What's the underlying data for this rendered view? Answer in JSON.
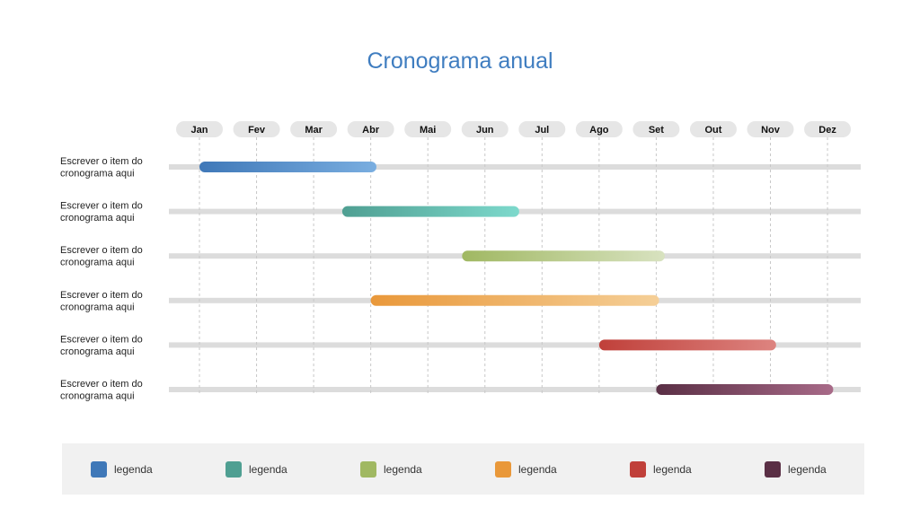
{
  "chart_data": {
    "type": "gantt",
    "title": "Cronograma anual",
    "months": [
      "Jan",
      "Fev",
      "Mar",
      "Abr",
      "Mai",
      "Jun",
      "Jul",
      "Ago",
      "Set",
      "Out",
      "Nov",
      "Dez"
    ],
    "tasks": [
      {
        "label": [
          "Escrever o item do",
          "cronograma aqui"
        ],
        "start": 1.0,
        "end": 4.1,
        "color_start": "#3f78b8",
        "color_end": "#7aaee0"
      },
      {
        "label": [
          "Escrever o item do",
          "cronograma aqui"
        ],
        "start": 3.5,
        "end": 6.6,
        "color_start": "#4f9f92",
        "color_end": "#7dd9cc"
      },
      {
        "label": [
          "Escrever o item do",
          "cronograma aqui"
        ],
        "start": 5.6,
        "end": 9.15,
        "color_start": "#a0b862",
        "color_end": "#d8e2c0"
      },
      {
        "label": [
          "Escrever o item do",
          "cronograma aqui"
        ],
        "start": 4.0,
        "end": 9.05,
        "color_start": "#e9983a",
        "color_end": "#f5cf97"
      },
      {
        "label": [
          "Escrever o item do",
          "cronograma aqui"
        ],
        "start": 8.0,
        "end": 11.1,
        "color_start": "#c0403a",
        "color_end": "#dd8480"
      },
      {
        "label": [
          "Escrever o item do",
          "cronograma aqui"
        ],
        "start": 9.0,
        "end": 12.1,
        "color_start": "#5a2f45",
        "color_end": "#a86a88"
      }
    ],
    "legend": [
      {
        "label": "legenda",
        "color": "#3f78b8"
      },
      {
        "label": "legenda",
        "color": "#4f9f92"
      },
      {
        "label": "legenda",
        "color": "#a0b862"
      },
      {
        "label": "legenda",
        "color": "#e9983a"
      },
      {
        "label": "legenda",
        "color": "#c0403a"
      },
      {
        "label": "legenda",
        "color": "#5a2f45"
      }
    ],
    "grid": true,
    "legend_position": "bottom"
  }
}
